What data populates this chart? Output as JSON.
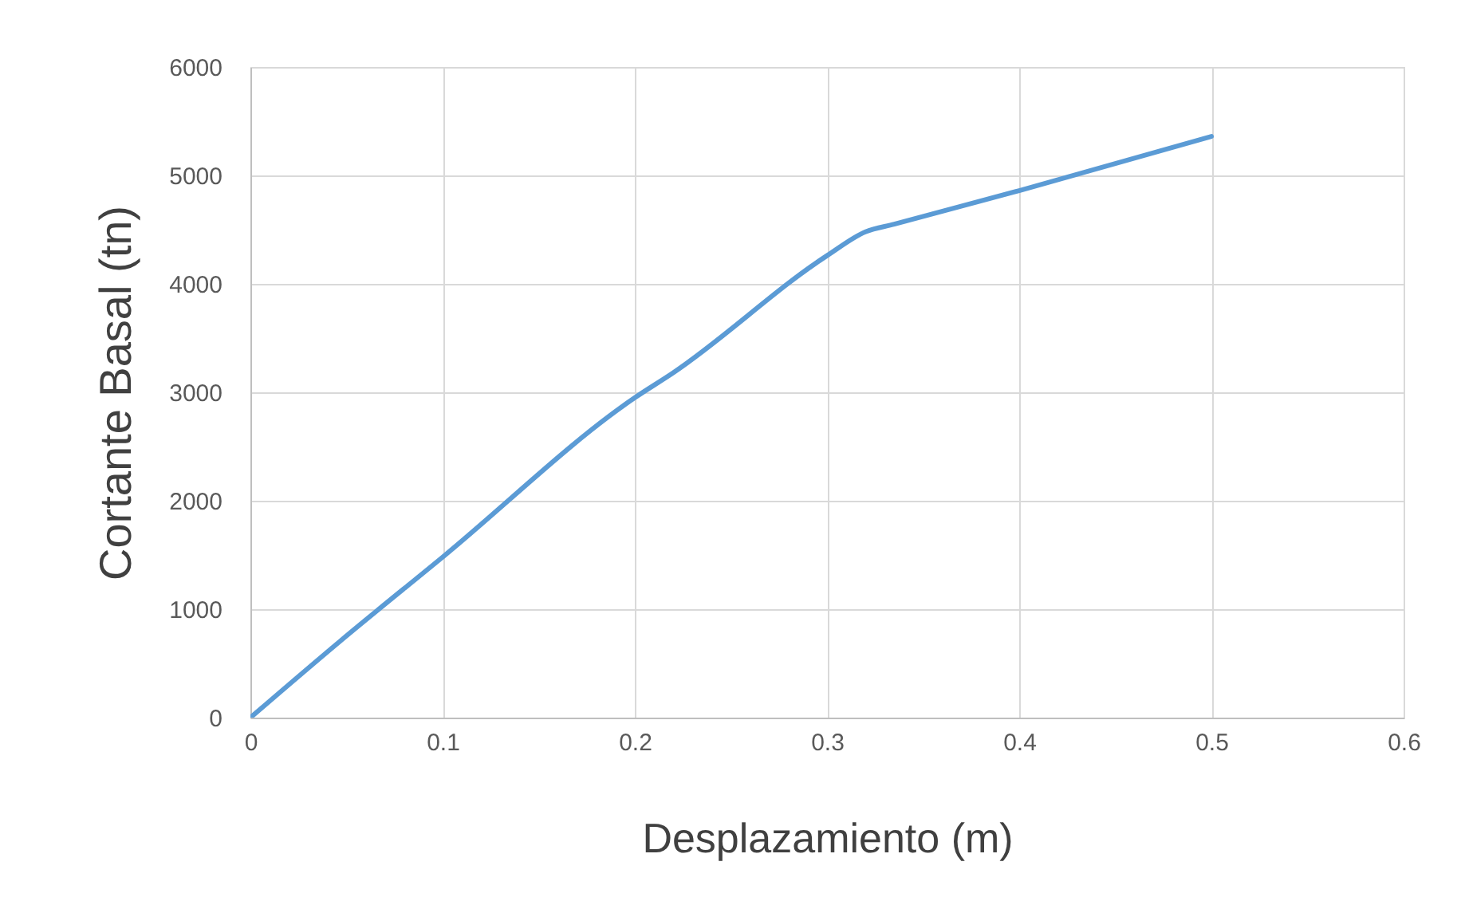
{
  "chart_data": {
    "type": "line",
    "xlabel": "Desplazamiento (m)",
    "ylabel": "Cortante Basal (tn)",
    "x": [
      0,
      0.047,
      0.1,
      0.2,
      0.22,
      0.3,
      0.32,
      0.335,
      0.4,
      0.5
    ],
    "series": [
      {
        "color": "#5b9bd5",
        "values": [
          0,
          710,
          1480,
          2950,
          3180,
          4260,
          4480,
          4550,
          4860,
          5360
        ]
      }
    ],
    "xlim": [
      0,
      0.6
    ],
    "xticks": [
      0,
      0.1,
      0.2,
      0.3,
      0.4,
      0.5,
      0.6
    ],
    "ylim": [
      0,
      6000
    ],
    "yticks": [
      0,
      1000,
      2000,
      3000,
      4000,
      5000,
      6000
    ],
    "grid": true,
    "marker": "none",
    "line_style": "solid"
  }
}
